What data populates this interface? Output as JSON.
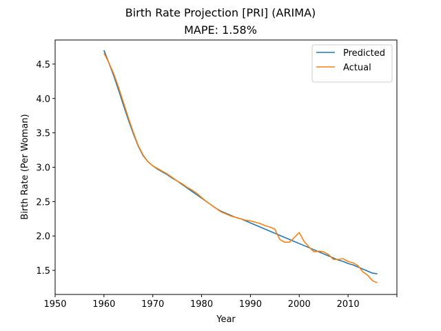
{
  "chart_data": {
    "type": "line",
    "title": "Birth Rate Projection [PRI] (ARIMA)",
    "subtitle": "MAPE: 1.58%",
    "xlabel": "Year",
    "ylabel": "Birth Rate (Per Woman)",
    "xlim": [
      1950,
      2020
    ],
    "ylim": [
      1.15,
      4.85
    ],
    "x_ticks": [
      1950,
      1960,
      1970,
      1980,
      1990,
      2000,
      2010,
      2020
    ],
    "x_tick_labels": [
      "1950",
      "1960",
      "1970",
      "1980",
      "1990",
      "2000",
      "2010",
      ""
    ],
    "y_ticks": [
      1.5,
      2.0,
      2.5,
      3.0,
      3.5,
      4.0,
      4.5
    ],
    "y_tick_labels": [
      "1.5",
      "2.0",
      "2.5",
      "3.0",
      "3.5",
      "4.0",
      "4.5"
    ],
    "grid": false,
    "legend_position": "top-right",
    "series": [
      {
        "name": "Predicted",
        "color": "#1f77b4",
        "x": [
          1960,
          1961,
          1962,
          1963,
          1964,
          1965,
          1966,
          1967,
          1968,
          1969,
          1970,
          1971,
          1972,
          1973,
          1974,
          1975,
          1976,
          1977,
          1978,
          1979,
          1980,
          1981,
          1982,
          1983,
          1984,
          1985,
          1986,
          1987,
          1988,
          1989,
          1990,
          1991,
          1992,
          1993,
          1994,
          1995,
          1996,
          1997,
          1998,
          1999,
          2000,
          2001,
          2002,
          2003,
          2004,
          2005,
          2006,
          2007,
          2008,
          2009,
          2010,
          2011,
          2012,
          2013,
          2014,
          2015,
          2016
        ],
        "values": [
          4.7,
          4.52,
          4.33,
          4.12,
          3.9,
          3.69,
          3.49,
          3.31,
          3.17,
          3.08,
          3.02,
          2.97,
          2.93,
          2.89,
          2.84,
          2.8,
          2.75,
          2.7,
          2.65,
          2.6,
          2.55,
          2.5,
          2.45,
          2.4,
          2.36,
          2.33,
          2.3,
          2.27,
          2.25,
          2.22,
          2.19,
          2.16,
          2.13,
          2.1,
          2.07,
          2.04,
          2.01,
          1.98,
          1.95,
          1.92,
          1.89,
          1.86,
          1.83,
          1.8,
          1.77,
          1.74,
          1.71,
          1.68,
          1.65,
          1.63,
          1.6,
          1.58,
          1.55,
          1.52,
          1.49,
          1.46,
          1.45
        ]
      },
      {
        "name": "Actual",
        "color": "#ff7f0e",
        "x": [
          1960,
          1961,
          1962,
          1963,
          1964,
          1965,
          1966,
          1967,
          1968,
          1969,
          1970,
          1971,
          1972,
          1973,
          1974,
          1975,
          1976,
          1977,
          1978,
          1979,
          1980,
          1981,
          1982,
          1983,
          1984,
          1985,
          1986,
          1987,
          1988,
          1989,
          1990,
          1991,
          1992,
          1993,
          1994,
          1995,
          1996,
          1997,
          1998,
          1999,
          2000,
          2001,
          2002,
          2003,
          2004,
          2005,
          2006,
          2007,
          2008,
          2009,
          2010,
          2011,
          2012,
          2013,
          2014,
          2015,
          2016
        ],
        "values": [
          4.66,
          4.52,
          4.36,
          4.16,
          3.94,
          3.72,
          3.51,
          3.32,
          3.18,
          3.08,
          3.02,
          2.98,
          2.94,
          2.9,
          2.85,
          2.8,
          2.76,
          2.71,
          2.67,
          2.62,
          2.56,
          2.5,
          2.45,
          2.4,
          2.35,
          2.32,
          2.29,
          2.27,
          2.25,
          2.23,
          2.22,
          2.2,
          2.18,
          2.15,
          2.13,
          2.1,
          1.95,
          1.91,
          1.91,
          1.98,
          2.05,
          1.92,
          1.84,
          1.77,
          1.78,
          1.77,
          1.73,
          1.66,
          1.66,
          1.67,
          1.63,
          1.61,
          1.57,
          1.48,
          1.43,
          1.35,
          1.32
        ]
      }
    ]
  }
}
